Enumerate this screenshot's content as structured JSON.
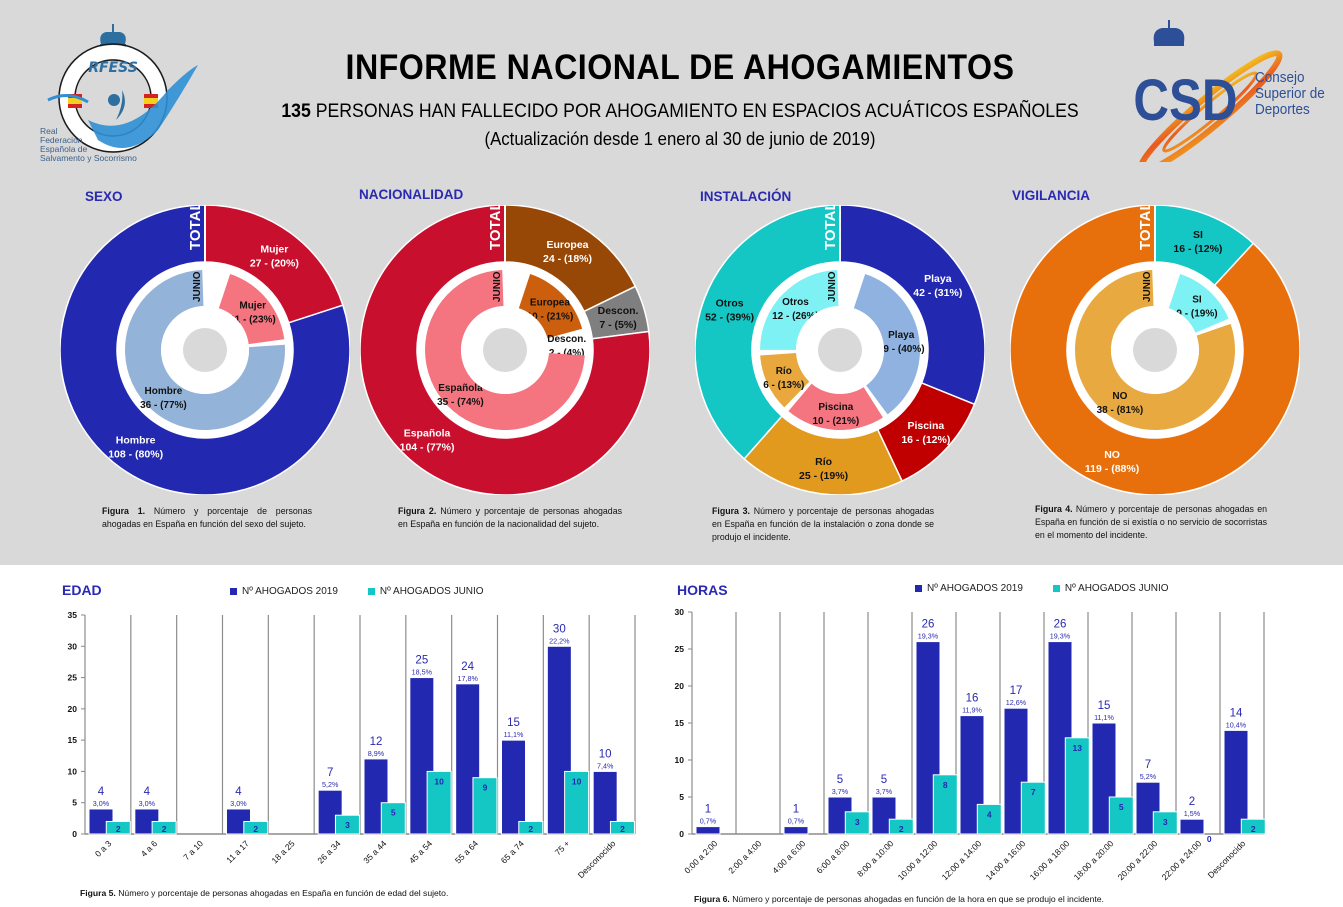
{
  "header": {
    "title": "INFORME NACIONAL DE AHOGAMIENTOS",
    "subtitle_number": "135",
    "subtitle_rest": " PERSONAS HAN FALLECIDO POR AHOGAMIENTO EN ESPACIOS ACUÁTICOS ESPAÑOLES",
    "update": "(Actualización desde 1 enero al 30 de junio de 2019)",
    "logo_left": {
      "acronym": "RFESS",
      "lines": [
        "Real",
        "Federación",
        "Española de",
        "Salvamento y Socorrismo"
      ]
    },
    "logo_right": {
      "acronym": "CSD",
      "lines": [
        "Consejo",
        "Superior de",
        "Deportes"
      ]
    }
  },
  "colors": {
    "background_top": "#d9d9d9",
    "title_blue": "#2929b2",
    "bar_2019": "#2228b0",
    "bar_junio": "#14c7c4"
  },
  "chart_data": [
    {
      "type": "pie",
      "id": "sexo",
      "title": "SEXO",
      "outer_label": "TOTAL",
      "inner_label": "JUNIO",
      "outer": [
        {
          "name": "Mujer",
          "value": 27,
          "pct": "20%",
          "label": "27 - (20%)",
          "color": "#c8102e",
          "text": "#ffffff"
        },
        {
          "name": "Hombre",
          "value": 108,
          "pct": "80%",
          "label": "108 - (80%)",
          "color": "#2228b0",
          "text": "#ffffff"
        }
      ],
      "inner": [
        {
          "name": "Mujer",
          "value": 11,
          "pct": "23%",
          "label": "11 - (23%)",
          "color": "#f4747f",
          "text": "#111111"
        },
        {
          "name": "Hombre",
          "value": 36,
          "pct": "77%",
          "label": "36 - (77%)",
          "color": "#94b3d8",
          "text": "#111111"
        }
      ],
      "caption_bold": "Figura 1.",
      "caption": " Número y porcentaje de personas ahogadas en España en función del sexo del sujeto."
    },
    {
      "type": "pie",
      "id": "nacionalidad",
      "title": "NACIONALIDAD",
      "outer_label": "TOTAL",
      "inner_label": "JUNIO",
      "outer": [
        {
          "name": "Europea",
          "value": 24,
          "pct": "18%",
          "label": "24 - (18%)",
          "color": "#974806",
          "text": "#ffffff"
        },
        {
          "name": "Descon.",
          "value": 7,
          "pct": "5%",
          "label": "7 - (5%)",
          "color": "#7f7f7f",
          "text": "#111111"
        },
        {
          "name": "Española",
          "value": 104,
          "pct": "77%",
          "label": "104 - (77%)",
          "color": "#c8102e",
          "text": "#ffffff"
        }
      ],
      "inner": [
        {
          "name": "Europea",
          "value": 10,
          "pct": "21%",
          "label": "10 - (21%)",
          "color": "#cc5f0d",
          "text": "#111111"
        },
        {
          "name": "Descon.",
          "value": 2,
          "pct": "4%",
          "label": "2 - (4%)",
          "color": "#ffffff",
          "text": "#111111"
        },
        {
          "name": "Española",
          "value": 35,
          "pct": "74%",
          "label": "35 - (74%)",
          "color": "#f4747f",
          "text": "#111111"
        }
      ],
      "caption_bold": "Figura 2.",
      "caption": " Número y porcentaje de personas ahogadas en España en función de la nacionalidad del sujeto."
    },
    {
      "type": "pie",
      "id": "instalacion",
      "title": "INSTALACIÓN",
      "outer_label": "TOTAL",
      "inner_label": "JUNIO",
      "outer": [
        {
          "name": "Playa",
          "value": 42,
          "pct": "31%",
          "label": "42 - (31%)",
          "color": "#2228b0",
          "text": "#ffffff"
        },
        {
          "name": "Piscina",
          "value": 16,
          "pct": "12%",
          "label": "16 - (12%)",
          "color": "#c00000",
          "text": "#ffffff"
        },
        {
          "name": "Río",
          "value": 25,
          "pct": "19%",
          "label": "25 - (19%)",
          "color": "#e29a1e",
          "text": "#111111"
        },
        {
          "name": "Otros",
          "value": 52,
          "pct": "39%",
          "label": "52 - (39%)",
          "color": "#14c7c4",
          "text": "#111111"
        }
      ],
      "inner": [
        {
          "name": "Playa",
          "value": 19,
          "pct": "40%",
          "label": "19 - (40%)",
          "color": "#8fb2e0",
          "text": "#111111"
        },
        {
          "name": "Piscina",
          "value": 10,
          "pct": "21%",
          "label": "10 - (21%)",
          "color": "#f4747f",
          "text": "#111111"
        },
        {
          "name": "Río",
          "value": 6,
          "pct": "13%",
          "label": "6 - (13%)",
          "color": "#e8a83e",
          "text": "#111111"
        },
        {
          "name": "Otros",
          "value": 12,
          "pct": "26%",
          "label": "12 - (26%)",
          "color": "#7ef1f4",
          "text": "#111111"
        }
      ],
      "caption_bold": "Figura 3.",
      "caption": " Número y porcentaje de personas ahogadas en España en función de la instalación o zona donde se produjo el incidente."
    },
    {
      "type": "pie",
      "id": "vigilancia",
      "title": "VIGILANCIA",
      "outer_label": "TOTAL",
      "inner_label": "JUNIO",
      "outer": [
        {
          "name": "SI",
          "value": 16,
          "pct": "12%",
          "label": "16 - (12%)",
          "color": "#14c7c4",
          "text": "#111111"
        },
        {
          "name": "NO",
          "value": 119,
          "pct": "88%",
          "label": "119 - (88%)",
          "color": "#e8700c",
          "text": "#ffffff"
        }
      ],
      "inner": [
        {
          "name": "SI",
          "value": 9,
          "pct": "19%",
          "label": "9 - (19%)",
          "color": "#7ef1f4",
          "text": "#111111"
        },
        {
          "name": "NO",
          "value": 38,
          "pct": "81%",
          "label": "38 - (81%)",
          "color": "#e8aa40",
          "text": "#111111"
        }
      ],
      "caption_bold": "Figura 4.",
      "caption": " Número y porcentaje de personas ahogadas en España en función de si existía o no servicio de socorristas en el momento del incidente."
    },
    {
      "type": "bar",
      "id": "edad",
      "title": "EDAD",
      "legend": [
        "Nº AHOGADOS 2019",
        "Nº AHOGADOS JUNIO"
      ],
      "legend_position": "top-right",
      "ylim": [
        0,
        35
      ],
      "yticks": [
        0,
        5,
        10,
        15,
        20,
        25,
        30,
        35
      ],
      "categories": [
        "0 a 3",
        "4 a 6",
        "7 a 10",
        "11 a 17",
        "18 a 25",
        "26 a 34",
        "35 a 44",
        "45 a 54",
        "55 a 64",
        "65 a 74",
        "75 +",
        "Desconocido"
      ],
      "series": [
        {
          "name": "Nº AHOGADOS 2019",
          "values": [
            4,
            4,
            0,
            4,
            0,
            7,
            12,
            25,
            24,
            15,
            30,
            10
          ],
          "pct_labels": [
            "3,0%",
            "3,0%",
            "",
            "3,0%",
            "",
            "5,2%",
            "8,9%",
            "18,5%",
            "17,8%",
            "11,1%",
            "22,2%",
            "7,4%"
          ]
        },
        {
          "name": "Nº AHOGADOS JUNIO",
          "values": [
            2,
            2,
            0,
            2,
            0,
            3,
            5,
            10,
            9,
            2,
            10,
            2
          ]
        }
      ],
      "caption_bold": "Figura 5.",
      "caption": " Número y porcentaje de personas ahogadas en España en función de edad del sujeto."
    },
    {
      "type": "bar",
      "id": "horas",
      "title": "HORAS",
      "legend": [
        "Nº AHOGADOS 2019",
        "Nº AHOGADOS JUNIO"
      ],
      "legend_position": "top-right",
      "ylim": [
        0,
        30
      ],
      "yticks": [
        0,
        5,
        10,
        15,
        20,
        25,
        30
      ],
      "categories": [
        "0:00 a 2:00",
        "2:00 a 4:00",
        "4:00 a 6:00",
        "6:00 a 8:00",
        "8:00 a 10:00",
        "10:00 a 12:00",
        "12:00 a 14:00",
        "14:00 a 16:00",
        "16:00 a 18:00",
        "18:00 a 20:00",
        "20:00 a 22:00",
        "22:00 a 24:00",
        "Desconocido"
      ],
      "series": [
        {
          "name": "Nº AHOGADOS 2019",
          "values": [
            1,
            0,
            1,
            5,
            5,
            26,
            16,
            17,
            26,
            15,
            7,
            2,
            14
          ],
          "pct_labels": [
            "0,7%",
            "",
            "0,7%",
            "3,7%",
            "3,7%",
            "19,3%",
            "11,9%",
            "12,6%",
            "19,3%",
            "11,1%",
            "5,2%",
            "1,5%",
            "10,4%"
          ]
        },
        {
          "name": "Nº AHOGADOS JUNIO",
          "values": [
            0,
            0,
            0,
            3,
            2,
            8,
            4,
            7,
            13,
            5,
            3,
            0,
            2
          ]
        }
      ],
      "extra_labels": [
        {
          "category": "22:00 a 24:00",
          "text": "0"
        }
      ],
      "caption_bold": "Figura 6.",
      "caption": " Número y porcentaje de personas ahogadas en función de la hora en que se produjo el incidente."
    }
  ]
}
